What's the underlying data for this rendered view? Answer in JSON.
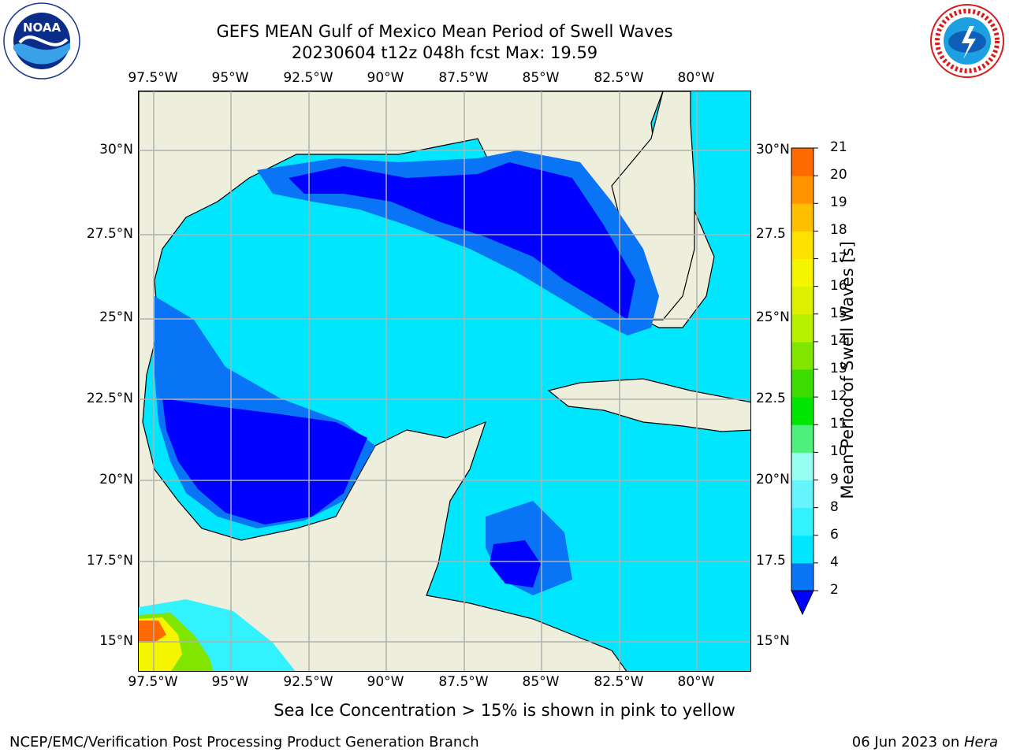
{
  "header": {
    "title_line1": "GEFS MEAN Gulf of Mexico Mean Period of Swell Waves",
    "title_line2": "20230604 t12z 048h fcst   Max: 19.59"
  },
  "logos": {
    "left": {
      "icon": "noaa-logo",
      "text": "NOAA",
      "ring_text": "NATIONAL OCEANIC AND ATMOSPHERIC ADMINISTRATION · U.S. DEPARTMENT OF COMMERCE"
    },
    "right": {
      "icon": "national-weather-service-logo",
      "ring_text": "NATIONAL WEATHER SERVICE"
    }
  },
  "axes": {
    "lon_ticks": [
      "97.5°W",
      "95°W",
      "92.5°W",
      "90°W",
      "87.5°W",
      "85°W",
      "82.5°W",
      "80°W"
    ],
    "lat_ticks_left": [
      "30°N",
      "27.5°N",
      "25°N",
      "22.5°N",
      "20°N",
      "17.5°N",
      "15°N"
    ],
    "lat_ticks_right": [
      "30°N",
      "27.5",
      "25°N",
      "22.5",
      "20°N",
      "17.5",
      "15°N"
    ]
  },
  "colorbar": {
    "label": "Mean Period of Swell Waves [s]",
    "tick_labels": [
      "2",
      "4",
      "6",
      "8",
      "9",
      "10",
      "11",
      "12",
      "13",
      "14",
      "15",
      "16",
      "17",
      "18",
      "19",
      "20",
      "21"
    ],
    "colors": [
      "#0a74f7",
      "#00e6ff",
      "#33f2ff",
      "#66f5ff",
      "#99fff2",
      "#4df07a",
      "#00e600",
      "#3cdc00",
      "#80e600",
      "#b8f000",
      "#dcf000",
      "#f5f500",
      "#ffe100",
      "#ffbf00",
      "#ff9400",
      "#ff6a00",
      "#ff4000",
      "#ff1a00"
    ],
    "extend_color": "#0000ff"
  },
  "map": {
    "land_color": "#eeeedc",
    "ocean_deep_color": "#0000ff"
  },
  "footer": {
    "note": "Sea Ice Concentration > 15% is shown in pink to yellow",
    "credit": "NCEP/EMC/Verification Post Processing Product Generation Branch",
    "date_prefix": "06 Jun 2023 on ",
    "date_machine": "Hera"
  }
}
